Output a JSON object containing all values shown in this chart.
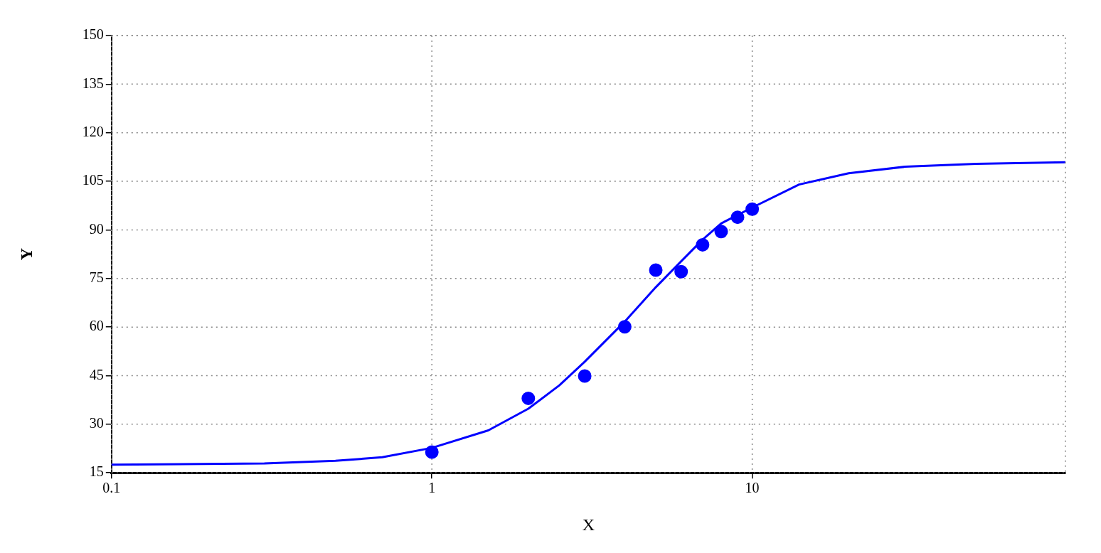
{
  "chart_data": {
    "type": "scatter",
    "xlabel": "X",
    "ylabel": "Y",
    "log": "x",
    "grid": true,
    "legend": false,
    "xlim": [
      0.1,
      95
    ],
    "xticks": [
      0.1,
      1,
      10
    ],
    "ylim": [
      15,
      150
    ],
    "yticks": [
      15,
      30,
      45,
      60,
      75,
      90,
      105,
      120,
      135,
      150
    ],
    "series": [
      {
        "color": "#0000ff",
        "marker": "circle",
        "x": [
          1,
          2,
          3,
          4,
          5,
          6,
          7,
          8,
          9,
          10
        ],
        "values": [
          21.4,
          38,
          44.9,
          60.1,
          77.6,
          77.1,
          85.4,
          89.5,
          93.9,
          96.4
        ]
      },
      {
        "type": "line",
        "color": "#0000ff",
        "marker": "none",
        "line_style": "solid",
        "x": [
          0.1,
          0.3,
          0.5,
          0.7,
          1,
          1.5,
          2,
          2.5,
          3,
          4,
          5,
          6,
          7,
          8,
          10,
          14,
          20,
          30,
          50,
          95
        ],
        "values": [
          17.5,
          17.9,
          18.7,
          19.8,
          22.7,
          28.1,
          34.8,
          42,
          49.3,
          61.7,
          72.3,
          80.3,
          87,
          92,
          96.9,
          104,
          107.5,
          109.5,
          110.4,
          110.9
        ]
      }
    ]
  }
}
